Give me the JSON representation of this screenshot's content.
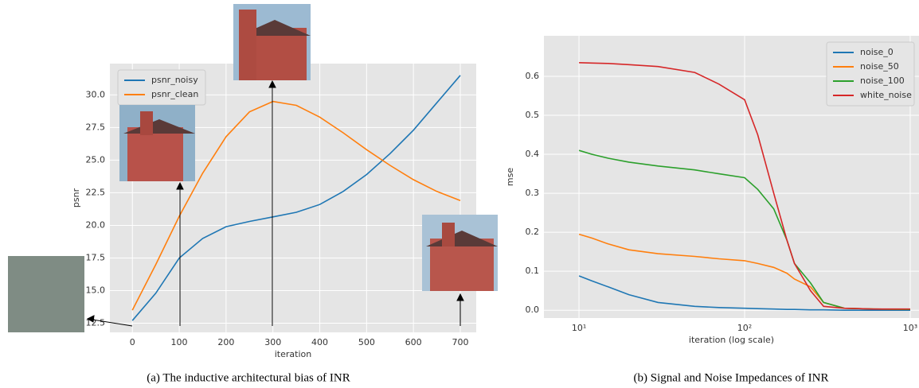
{
  "chart_data": [
    {
      "type": "line",
      "caption": "(a) The inductive architectural bias of INR",
      "xlabel": "iteration",
      "ylabel": "psnr",
      "x": [
        0,
        50,
        100,
        150,
        200,
        250,
        300,
        350,
        400,
        450,
        500,
        550,
        600,
        650,
        700
      ],
      "series": [
        {
          "name": "psnr_noisy",
          "color": "#1f77b4",
          "values": [
            12.7,
            14.8,
            17.5,
            19.0,
            19.9,
            20.3,
            20.65,
            21.0,
            21.6,
            22.6,
            23.9,
            25.5,
            27.3,
            29.4,
            31.5
          ]
        },
        {
          "name": "psnr_clean",
          "color": "#ff7f0e",
          "values": [
            13.5,
            17.0,
            20.7,
            24.0,
            26.8,
            28.7,
            29.5,
            29.2,
            28.3,
            27.1,
            25.8,
            24.6,
            23.5,
            22.6,
            21.9
          ]
        }
      ],
      "xlim": [
        -48,
        734
      ],
      "xticks": [
        0,
        100,
        200,
        300,
        400,
        500,
        600,
        700
      ],
      "ylim": [
        11.8,
        32.4
      ],
      "yticks": [
        12.5,
        {
          "value": 15,
          "label": "15.0"
        },
        17.5,
        {
          "value": 20,
          "label": "20.0"
        },
        22.5,
        {
          "value": 25,
          "label": "25.0"
        },
        27.5,
        {
          "value": 30,
          "label": "30.0"
        }
      ],
      "grid": true,
      "legend": "upper left",
      "log_x": false
    },
    {
      "type": "line",
      "caption": "(b) Signal and Noise Impedances of INR",
      "xlabel": "iteration (log scale)",
      "ylabel": "mse",
      "x": [
        10,
        12,
        15,
        20,
        30,
        50,
        70,
        100,
        120,
        150,
        180,
        200,
        250,
        300,
        400,
        600,
        1000
      ],
      "series": [
        {
          "name": "noise_0",
          "color": "#1f77b4",
          "values": [
            0.088,
            0.075,
            0.06,
            0.04,
            0.02,
            0.01,
            0.007,
            0.005,
            0.004,
            0.003,
            0.002,
            0.002,
            0.001,
            0.001,
            0,
            0,
            0
          ]
        },
        {
          "name": "noise_50",
          "color": "#ff7f0e",
          "values": [
            0.195,
            0.185,
            0.17,
            0.155,
            0.145,
            0.138,
            0.132,
            0.127,
            0.12,
            0.11,
            0.095,
            0.08,
            0.06,
            0.02,
            0.005,
            0.003,
            0.002
          ]
        },
        {
          "name": "noise_100",
          "color": "#2ca02c",
          "values": [
            0.41,
            0.4,
            0.39,
            0.38,
            0.37,
            0.36,
            0.35,
            0.34,
            0.31,
            0.26,
            0.18,
            0.12,
            0.07,
            0.02,
            0.005,
            0.003,
            0.002
          ]
        },
        {
          "name": "white_noise",
          "color": "#d62728",
          "values": [
            0.635,
            0.634,
            0.633,
            0.63,
            0.625,
            0.61,
            0.58,
            0.54,
            0.45,
            0.3,
            0.18,
            0.12,
            0.05,
            0.01,
            0.005,
            0.003,
            0.003
          ]
        }
      ],
      "xlim": [
        6.14,
        1130
      ],
      "xticks": [
        {
          "value": 10,
          "label": "10¹"
        },
        {
          "value": 100,
          "label": "10²"
        },
        {
          "value": 1000,
          "label": "10³"
        }
      ],
      "ylim": [
        -0.02,
        0.704
      ],
      "yticks": [
        {
          "value": 0,
          "label": "0.0"
        },
        0.1,
        0.2,
        0.3,
        0.4,
        0.5,
        0.6
      ],
      "grid": true,
      "legend": "upper right",
      "log_x": true
    }
  ]
}
